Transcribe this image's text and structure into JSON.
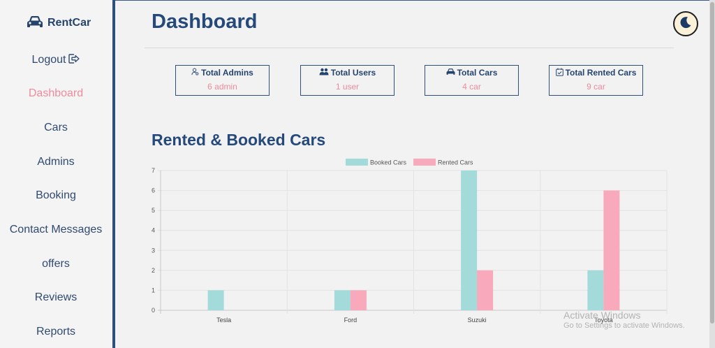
{
  "brand": {
    "name": "RentCar",
    "icon": "car-icon"
  },
  "sidebar": {
    "items": [
      {
        "label": "Logout",
        "icon": "logout-icon"
      },
      {
        "label": "Dashboard",
        "active": true
      },
      {
        "label": "Cars"
      },
      {
        "label": "Admins"
      },
      {
        "label": "Booking"
      },
      {
        "label": "Contact Messages"
      },
      {
        "label": "offers"
      },
      {
        "label": "Reviews"
      },
      {
        "label": "Reports"
      }
    ]
  },
  "page": {
    "title": "Dashboard"
  },
  "theme_toggle": {
    "icon": "moon-icon"
  },
  "stats": [
    {
      "title": "Total Admins",
      "value": "6 admin",
      "icon": "user-gear-icon"
    },
    {
      "title": "Total Users",
      "value": "1 user",
      "icon": "users-icon"
    },
    {
      "title": "Total Cars",
      "value": "4 car",
      "icon": "car-icon"
    },
    {
      "title": "Total Rented Cars",
      "value": "9 car",
      "icon": "calendar-check-icon"
    }
  ],
  "section": {
    "title": "Rented & Booked Cars"
  },
  "chart_data": {
    "type": "bar",
    "categories": [
      "Tesla",
      "Ford",
      "Suzuki",
      "Toyota"
    ],
    "series": [
      {
        "name": "Booked Cars",
        "values": [
          1,
          1,
          7,
          2
        ],
        "color": "#a3dbdb"
      },
      {
        "name": "Rented Cars",
        "values": [
          0,
          1,
          2,
          6
        ],
        "color": "#f8a9bb"
      }
    ],
    "ylim": [
      0,
      7
    ],
    "yticks": [
      "0",
      "1",
      "2",
      "3",
      "4",
      "5",
      "6",
      "7"
    ],
    "grid": true,
    "legend": "top-center"
  },
  "watermark": {
    "line1": "Activate Windows",
    "line2": "Go to Settings to activate Windows."
  },
  "colors": {
    "accent": "#24497a",
    "active": "#ef8b9b",
    "sidebar_border": "#2a4f80"
  }
}
